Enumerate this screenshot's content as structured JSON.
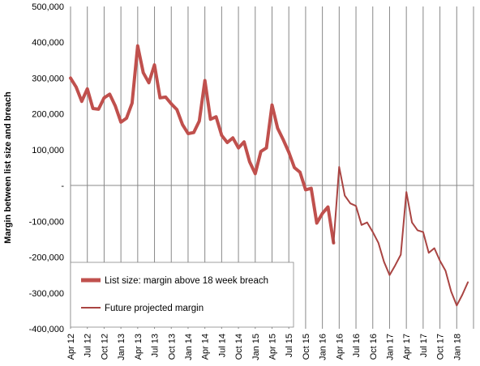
{
  "chart_data": {
    "type": "line",
    "title": "",
    "xlabel": "",
    "ylabel": "Margin between list size and breach",
    "ylim": [
      -400000,
      500000
    ],
    "y_ticks": [
      "500,000",
      "400,000",
      "300,000",
      "200,000",
      "100,000",
      "-",
      "-100,000",
      "-200,000",
      "-300,000",
      "-400,000"
    ],
    "x_tick_labels": [
      "Apr 12",
      "Jul 12",
      "Oct 12",
      "Jan 13",
      "Apr 13",
      "Jul 13",
      "Oct 13",
      "Jan 14",
      "Apr 14",
      "Jul 14",
      "Oct 14",
      "Jan 15",
      "Apr 15",
      "Jul 15",
      "Oct 15",
      "Jan 16",
      "Apr 16",
      "Jul 16",
      "Oct 16",
      "Jan 17",
      "Apr 17",
      "Jul 17",
      "Oct 17",
      "Jan 18"
    ],
    "grid": "vertical",
    "legend_position": "bottom-left",
    "series": [
      {
        "name": "List size: margin above 18 week breach",
        "color": "#c0504d",
        "values": [
          300000,
          275000,
          235000,
          270000,
          215000,
          213000,
          245000,
          255000,
          222000,
          177000,
          188000,
          230000,
          390000,
          315000,
          287000,
          337000,
          245000,
          247000,
          228000,
          212000,
          170000,
          145000,
          148000,
          180000,
          293000,
          185000,
          192000,
          140000,
          120000,
          133000,
          105000,
          122000,
          66000,
          33000,
          95000,
          105000,
          225000,
          160000,
          128000,
          93000,
          50000,
          37000,
          -12000,
          -8000,
          -105000,
          -78000,
          -60000,
          -160000
        ]
      },
      {
        "name": "Future projected margin",
        "color": "#a94442",
        "start_index": 47,
        "values": [
          -160000,
          52000,
          -28000,
          -50000,
          -57000,
          -110000,
          -103000,
          -130000,
          -160000,
          -213000,
          -250000,
          -223000,
          -193000,
          -18000,
          -103000,
          -125000,
          -130000,
          -188000,
          -175000,
          -210000,
          -238000,
          -296000,
          -335000,
          -305000,
          -270000
        ]
      }
    ]
  }
}
